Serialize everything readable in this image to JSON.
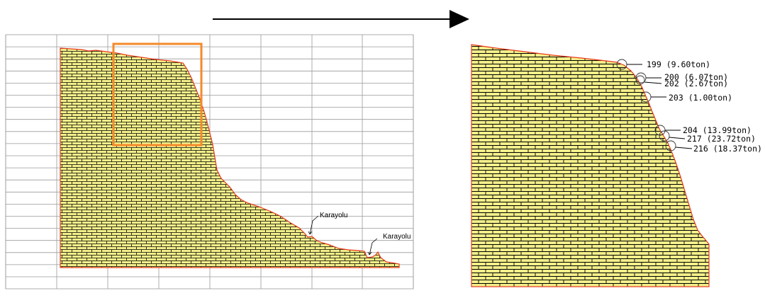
{
  "left_panel": {
    "road_labels": [
      "Karayolu",
      "Karayolu"
    ]
  },
  "right_panel": {
    "blocks": [
      {
        "id": "199",
        "label": "199 (9.60ton)"
      },
      {
        "id": "200",
        "label": "200 (6.07ton)"
      },
      {
        "id": "202",
        "label": "202 (2.67ton)"
      },
      {
        "id": "203",
        "label": "203 (1.00ton)"
      },
      {
        "id": "204",
        "label": "204 (13.99ton)"
      },
      {
        "id": "217",
        "label": "217 (23.72ton)"
      },
      {
        "id": "216",
        "label": "216 (18.37ton)"
      }
    ]
  },
  "colors": {
    "fill": "#f3ef8a",
    "brick_line": "#000000",
    "profile": "#e83a1f",
    "zoom_box": "#f58a2a",
    "grid": "#9a9a9a",
    "arrow": "#000000"
  }
}
